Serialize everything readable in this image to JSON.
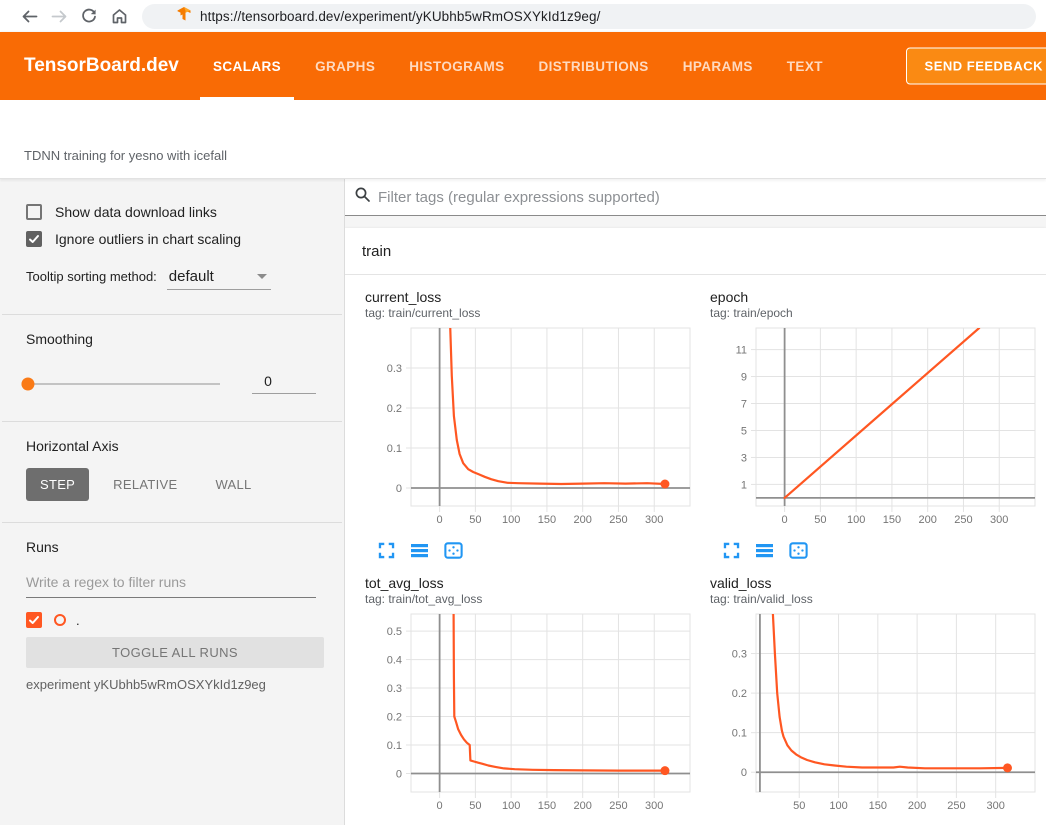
{
  "browser": {
    "url": "https://tensorboard.dev/experiment/yKUbhb5wRmOSXYkId1z9eg/",
    "icons": [
      "back-icon",
      "forward-icon",
      "reload-icon",
      "home-icon",
      "tensorboard-favicon"
    ]
  },
  "header": {
    "brand": "TensorBoard.dev",
    "tabs": [
      {
        "label": "SCALARS",
        "active": true
      },
      {
        "label": "GRAPHS",
        "active": false
      },
      {
        "label": "HISTOGRAMS",
        "active": false
      },
      {
        "label": "DISTRIBUTIONS",
        "active": false
      },
      {
        "label": "HPARAMS",
        "active": false
      },
      {
        "label": "TEXT",
        "active": false
      }
    ],
    "feedback_button": "SEND FEEDBACK",
    "colors": {
      "header_bg": "#f96b05",
      "feedback_bg": "#fa8a13"
    }
  },
  "subheader": {
    "experiment_title": "TDNN training for yesno with icefall"
  },
  "sidebar": {
    "checkboxes": [
      {
        "label": "Show data download links",
        "checked": false
      },
      {
        "label": "Ignore outliers in chart scaling",
        "checked": true
      }
    ],
    "tooltip_sorting": {
      "label": "Tooltip sorting method:",
      "value": "default"
    },
    "smoothing": {
      "label": "Smoothing",
      "value": "0"
    },
    "horizontal_axis": {
      "label": "Horizontal Axis",
      "options": [
        "STEP",
        "RELATIVE",
        "WALL"
      ],
      "selected": "STEP"
    },
    "runs": {
      "label": "Runs",
      "filter_placeholder": "Write a regex to filter runs",
      "run_name": ".",
      "run_checked": true,
      "run_color": "#ff5722",
      "toggle_button": "TOGGLE ALL RUNS",
      "experiment_label": "experiment yKUbhb5wRmOSXYkId1z9eg"
    }
  },
  "main": {
    "filter_placeholder": "Filter tags (regular expressions supported)",
    "section_title": "train",
    "chart_toolbar_icons": [
      "expand-icon",
      "runs-selector-icon",
      "fit-domain-icon"
    ],
    "accent_blue": "#2196f3"
  },
  "chart_data": [
    {
      "type": "line",
      "title": "current_loss",
      "tag": "tag: train/current_loss",
      "xlabel": "step",
      "ylabel": "",
      "x_ticks": [
        0,
        50,
        100,
        150,
        200,
        250,
        300
      ],
      "y_ticks": [
        0,
        0.1,
        0.2,
        0.3
      ],
      "xlim": [
        -40,
        350
      ],
      "ylim": [
        -0.045,
        0.4
      ],
      "grid": true,
      "legend": "none",
      "series": [
        {
          "name": ".",
          "color": "#ff5722",
          "points": [
            [
              14,
              0.45
            ],
            [
              17,
              0.28
            ],
            [
              20,
              0.18
            ],
            [
              24,
              0.12
            ],
            [
              28,
              0.085
            ],
            [
              33,
              0.062
            ],
            [
              40,
              0.047
            ],
            [
              47,
              0.04
            ],
            [
              55,
              0.034
            ],
            [
              63,
              0.028
            ],
            [
              72,
              0.022
            ],
            [
              82,
              0.017
            ],
            [
              95,
              0.013
            ],
            [
              110,
              0.012
            ],
            [
              140,
              0.011
            ],
            [
              170,
              0.01
            ],
            [
              200,
              0.011
            ],
            [
              230,
              0.012
            ],
            [
              260,
              0.011
            ],
            [
              290,
              0.012
            ],
            [
              315,
              0.01
            ]
          ]
        }
      ],
      "end_marker": [
        315,
        0.01
      ]
    },
    {
      "type": "line",
      "title": "epoch",
      "tag": "tag: train/epoch",
      "xlabel": "step",
      "ylabel": "",
      "x_ticks": [
        0,
        50,
        100,
        150,
        200,
        250,
        300
      ],
      "y_ticks": [
        1,
        3,
        5,
        7,
        9,
        11
      ],
      "xlim": [
        -40,
        350
      ],
      "ylim": [
        -0.6,
        12.6
      ],
      "grid": true,
      "legend": "none",
      "series": [
        {
          "name": ".",
          "color": "#ff5722",
          "points": [
            [
              0,
              0
            ],
            [
              272,
              12.6
            ]
          ]
        }
      ],
      "end_marker": null
    },
    {
      "type": "line",
      "title": "tot_avg_loss",
      "tag": "tag: train/tot_avg_loss",
      "xlabel": "step",
      "ylabel": "",
      "x_ticks": [
        0,
        50,
        100,
        150,
        200,
        250,
        300
      ],
      "y_ticks": [
        0,
        0.1,
        0.2,
        0.3,
        0.4,
        0.5
      ],
      "xlim": [
        -40,
        350
      ],
      "ylim": [
        -0.065,
        0.56
      ],
      "grid": true,
      "legend": "none",
      "series": [
        {
          "name": ".",
          "color": "#ff5722",
          "points": [
            [
              19.5,
              0.56
            ],
            [
              20,
              0.34
            ],
            [
              20.5,
              0.2
            ],
            [
              23,
              0.18
            ],
            [
              26,
              0.155
            ],
            [
              30,
              0.135
            ],
            [
              34,
              0.12
            ],
            [
              38,
              0.108
            ],
            [
              42,
              0.1
            ],
            [
              43,
              0.046
            ],
            [
              48,
              0.042
            ],
            [
              54,
              0.038
            ],
            [
              60,
              0.034
            ],
            [
              68,
              0.028
            ],
            [
              78,
              0.023
            ],
            [
              90,
              0.018
            ],
            [
              105,
              0.015
            ],
            [
              130,
              0.013
            ],
            [
              160,
              0.012
            ],
            [
              200,
              0.011
            ],
            [
              250,
              0.01
            ],
            [
              315,
              0.01
            ]
          ]
        }
      ],
      "end_marker": [
        315,
        0.01
      ]
    },
    {
      "type": "line",
      "title": "valid_loss",
      "tag": "tag: train/valid_loss",
      "xlabel": "step",
      "ylabel": "",
      "x_ticks": [
        50,
        100,
        150,
        200,
        250,
        300
      ],
      "y_ticks": [
        0,
        0.1,
        0.2,
        0.3
      ],
      "xlim": [
        -5,
        350
      ],
      "ylim": [
        -0.05,
        0.4
      ],
      "grid": true,
      "legend": "none",
      "series": [
        {
          "name": ".",
          "color": "#ff5722",
          "points": [
            [
              16,
              0.42
            ],
            [
              19,
              0.3
            ],
            [
              22,
              0.2
            ],
            [
              25,
              0.14
            ],
            [
              28,
              0.105
            ],
            [
              30,
              0.09
            ],
            [
              35,
              0.068
            ],
            [
              40,
              0.055
            ],
            [
              46,
              0.045
            ],
            [
              52,
              0.038
            ],
            [
              60,
              0.031
            ],
            [
              70,
              0.025
            ],
            [
              82,
              0.02
            ],
            [
              95,
              0.017
            ],
            [
              110,
              0.014
            ],
            [
              130,
              0.012
            ],
            [
              150,
              0.012
            ],
            [
              170,
              0.012
            ],
            [
              178,
              0.014
            ],
            [
              188,
              0.012
            ],
            [
              210,
              0.01
            ],
            [
              250,
              0.01
            ],
            [
              280,
              0.01
            ],
            [
              315,
              0.011
            ]
          ]
        }
      ],
      "end_marker": [
        315,
        0.011
      ]
    }
  ]
}
